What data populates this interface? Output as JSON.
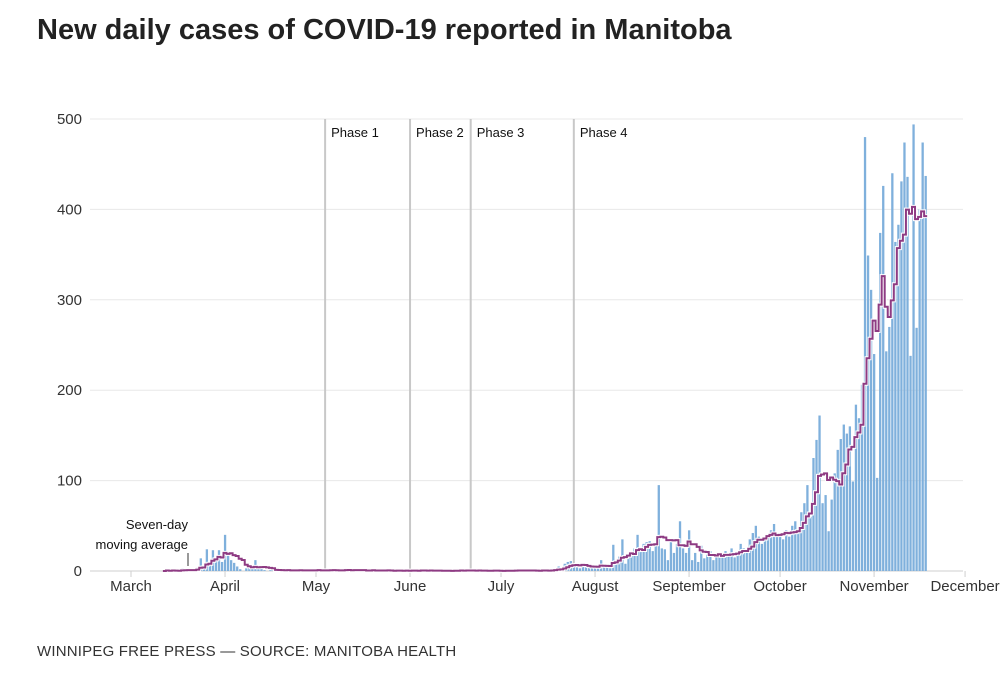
{
  "title": "New daily cases of COVID-19 reported in Manitoba",
  "source": "WINNIPEG FREE PRESS — SOURCE: MANITOBA HEALTH",
  "chart_data": {
    "type": "bar",
    "title": "New daily cases of COVID-19 reported in Manitoba",
    "xlabel": "",
    "ylabel": "",
    "ylim": [
      0,
      500
    ],
    "yticks": [
      "0",
      "100",
      "200",
      "300",
      "400",
      "500"
    ],
    "xticks": [
      "March",
      "April",
      "May",
      "June",
      "July",
      "August",
      "September",
      "October",
      "November",
      "December"
    ],
    "grid": true,
    "colors": {
      "bars": "#7fb0dc",
      "average": "#8e3b83",
      "phase_lines": "#c8c8c8"
    },
    "annotation": "Seven-day moving average",
    "annotation_lines": [
      "Seven-day",
      "moving average"
    ],
    "phases": [
      {
        "label": "Phase 1",
        "month": "May",
        "day": 4
      },
      {
        "label": "Phase 2",
        "month": "June",
        "day": 1
      },
      {
        "label": "Phase 3",
        "month": "June",
        "day": 21
      },
      {
        "label": "Phase 4",
        "month": "July",
        "day": 25
      }
    ],
    "daily_cases": [
      {
        "month": "March",
        "first_day": 12,
        "values": [
          0,
          1,
          0,
          1,
          0,
          0,
          3,
          1,
          2,
          0,
          1,
          4,
          14,
          5,
          24,
          8,
          23,
          12,
          23,
          10
        ]
      },
      {
        "month": "April",
        "first_day": 1,
        "values": [
          40,
          17,
          12,
          9,
          5,
          2,
          0,
          3,
          6,
          4,
          12,
          2,
          3,
          1,
          0,
          2,
          1,
          0,
          1,
          2,
          0,
          1,
          0,
          1,
          0,
          2,
          1,
          0,
          1,
          0
        ]
      },
      {
        "month": "May",
        "first_day": 1,
        "values": [
          1,
          2,
          0,
          1,
          0,
          2,
          1,
          0,
          1,
          0,
          3,
          1,
          0,
          2,
          0,
          1,
          0,
          0,
          1,
          2,
          0,
          0,
          1,
          0,
          1,
          0,
          0,
          1,
          0,
          0,
          1
        ]
      },
      {
        "month": "June",
        "first_day": 1,
        "values": [
          0,
          1,
          0,
          0,
          2,
          0,
          0,
          1,
          0,
          0,
          0,
          1,
          0,
          0,
          0,
          1,
          0,
          2,
          0,
          1,
          0,
          0,
          0,
          1,
          1,
          0,
          0,
          0,
          1,
          0
        ]
      },
      {
        "month": "July",
        "first_day": 1,
        "values": [
          0,
          0,
          1,
          0,
          0,
          2,
          1,
          0,
          0,
          1,
          0,
          0,
          1,
          0,
          2,
          0,
          0,
          1,
          3,
          5,
          2,
          8,
          10,
          11,
          6,
          4,
          3,
          5,
          7,
          4,
          6
        ]
      },
      {
        "month": "August",
        "first_day": 1,
        "values": [
          5,
          3,
          12,
          4,
          6,
          3,
          29,
          10,
          16,
          35,
          8,
          18,
          20,
          25,
          40,
          22,
          30,
          32,
          33,
          22,
          28,
          95,
          25,
          24,
          12,
          33,
          20,
          30,
          55,
          25,
          20
        ]
      },
      {
        "month": "September",
        "first_day": 1,
        "values": [
          45,
          12,
          20,
          10,
          28,
          14,
          18,
          22,
          12,
          16,
          20,
          15,
          22,
          18,
          25,
          15,
          20,
          30,
          25,
          22,
          35,
          42,
          50,
          38,
          30,
          35,
          40,
          45,
          52,
          38
        ]
      },
      {
        "month": "October",
        "first_day": 1,
        "values": [
          40,
          35,
          45,
          38,
          50,
          55,
          45,
          65,
          75,
          95,
          60,
          125,
          145,
          172,
          75,
          84,
          44,
          79,
          108,
          134,
          146,
          162,
          152,
          160,
          99,
          184,
          169,
          206,
          480,
          349,
          311
        ]
      },
      {
        "month": "November",
        "first_day": 1,
        "values": [
          240,
          103,
          374,
          426,
          243,
          270,
          440,
          364,
          383,
          431,
          474,
          436,
          238,
          494,
          269,
          400,
          474,
          437
        ]
      }
    ]
  }
}
